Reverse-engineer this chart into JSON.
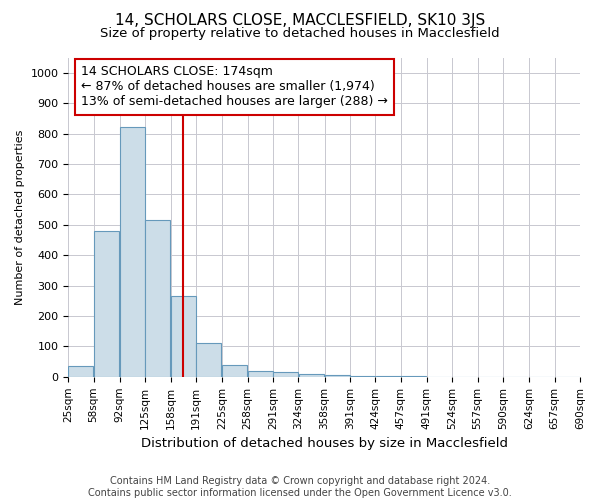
{
  "title": "14, SCHOLARS CLOSE, MACCLESFIELD, SK10 3JS",
  "subtitle": "Size of property relative to detached houses in Macclesfield",
  "xlabel": "Distribution of detached houses by size in Macclesfield",
  "ylabel": "Number of detached properties",
  "footer1": "Contains HM Land Registry data © Crown copyright and database right 2024.",
  "footer2": "Contains public sector information licensed under the Open Government Licence v3.0.",
  "property_label": "14 SCHOLARS CLOSE: 174sqm",
  "annotation_line1": "← 87% of detached houses are smaller (1,974)",
  "annotation_line2": "13% of semi-detached houses are larger (288) →",
  "bar_left_edges": [
    25,
    58,
    92,
    125,
    158,
    191,
    225,
    258,
    291,
    324,
    358,
    391,
    424,
    457,
    491,
    524,
    557,
    590,
    624,
    657
  ],
  "bar_widths": [
    33,
    33,
    33,
    33,
    33,
    33,
    33,
    33,
    33,
    33,
    33,
    33,
    33,
    33,
    33,
    33,
    33,
    33,
    33,
    33
  ],
  "bar_heights": [
    35,
    480,
    820,
    515,
    265,
    110,
    40,
    20,
    15,
    10,
    6,
    4,
    3,
    2,
    1,
    1,
    1,
    1,
    1,
    1
  ],
  "bar_color": "#ccdde8",
  "bar_edge_color": "#6699bb",
  "grid_color": "#c8c8d0",
  "vline_color": "#cc0000",
  "vline_x": 174,
  "annotation_box_color": "#cc0000",
  "ylim": [
    0,
    1050
  ],
  "yticks": [
    0,
    100,
    200,
    300,
    400,
    500,
    600,
    700,
    800,
    900,
    1000
  ],
  "xlim": [
    25,
    690
  ],
  "tick_labels": [
    "25sqm",
    "58sqm",
    "92sqm",
    "125sqm",
    "158sqm",
    "191sqm",
    "225sqm",
    "258sqm",
    "291sqm",
    "324sqm",
    "358sqm",
    "391sqm",
    "424sqm",
    "457sqm",
    "491sqm",
    "524sqm",
    "557sqm",
    "590sqm",
    "624sqm",
    "657sqm",
    "690sqm"
  ],
  "tick_positions": [
    25,
    58,
    92,
    125,
    158,
    191,
    225,
    258,
    291,
    324,
    358,
    391,
    424,
    457,
    491,
    524,
    557,
    590,
    624,
    657,
    690
  ],
  "title_fontsize": 11,
  "subtitle_fontsize": 9.5,
  "ylabel_fontsize": 8,
  "xlabel_fontsize": 9.5,
  "tick_fontsize": 7.5,
  "ytick_fontsize": 8,
  "footer_fontsize": 7,
  "annotation_fontsize": 9
}
